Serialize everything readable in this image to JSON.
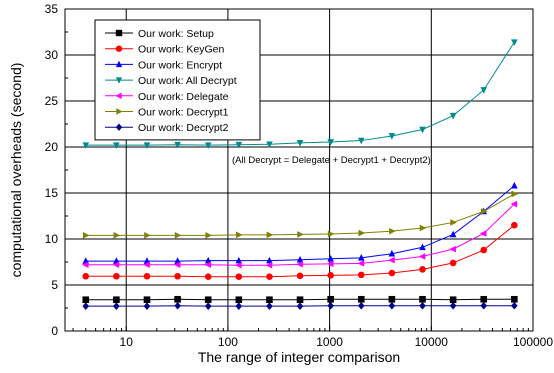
{
  "chart_data": {
    "type": "line",
    "xscale": "log",
    "xlim": [
      2.5,
      100000
    ],
    "ylim": [
      0,
      35
    ],
    "x": [
      4,
      8,
      16,
      32,
      64,
      128,
      256,
      512,
      1024,
      2048,
      4096,
      8192,
      16384,
      32768,
      65536
    ],
    "xticks": [
      10,
      100,
      1000,
      10000,
      100000
    ],
    "xtick_labels": [
      "10",
      "100",
      "1000",
      "10000",
      "100000"
    ],
    "yticks": [
      0,
      5,
      10,
      15,
      20,
      25,
      30,
      35
    ],
    "ytick_labels": [
      "0",
      "5",
      "10",
      "15",
      "20",
      "25",
      "30",
      "35"
    ],
    "xlabel": "The range of integer comparison",
    "ylabel": "computational overheads (second)",
    "grid": true,
    "legend_position": "top-left",
    "annotation": "(All Decrypt = Delegate + Decrypt1 + Decrypt2)",
    "series": [
      {
        "name": "Our work: Setup",
        "color": "#000000",
        "marker": "square",
        "values": [
          3.4,
          3.4,
          3.4,
          3.45,
          3.4,
          3.4,
          3.4,
          3.4,
          3.45,
          3.45,
          3.45,
          3.45,
          3.4,
          3.45,
          3.45
        ]
      },
      {
        "name": "Our work: KeyGen",
        "color": "#ff0000",
        "marker": "circle",
        "values": [
          5.95,
          5.95,
          5.95,
          5.95,
          5.9,
          5.9,
          5.9,
          6.0,
          6.05,
          6.1,
          6.3,
          6.7,
          7.4,
          8.8,
          11.5
        ]
      },
      {
        "name": "Our work: Encrypt",
        "color": "#0000ff",
        "marker": "triangle-up",
        "values": [
          7.6,
          7.6,
          7.6,
          7.6,
          7.65,
          7.65,
          7.65,
          7.75,
          7.85,
          7.95,
          8.4,
          9.1,
          10.5,
          13.0,
          15.8
        ]
      },
      {
        "name": "Our work: All Decrypt",
        "color": "#008b8b",
        "marker": "triangle-down",
        "values": [
          20.2,
          20.2,
          20.2,
          20.25,
          20.2,
          20.25,
          20.3,
          20.45,
          20.55,
          20.7,
          21.2,
          21.9,
          23.4,
          26.2,
          31.4
        ]
      },
      {
        "name": "Our work: Delegate",
        "color": "#ff00ff",
        "marker": "triangle-left",
        "values": [
          7.2,
          7.2,
          7.2,
          7.2,
          7.2,
          7.15,
          7.15,
          7.25,
          7.3,
          7.35,
          7.7,
          8.1,
          8.9,
          10.6,
          13.8
        ]
      },
      {
        "name": "Our work: Decrypt1",
        "color": "#808000",
        "marker": "triangle-right",
        "values": [
          10.4,
          10.4,
          10.4,
          10.4,
          10.4,
          10.45,
          10.45,
          10.5,
          10.55,
          10.65,
          10.85,
          11.2,
          11.8,
          13.0,
          14.9
        ]
      },
      {
        "name": "Our work: Decrypt2",
        "color": "#00008b",
        "marker": "diamond",
        "values": [
          2.7,
          2.7,
          2.7,
          2.75,
          2.7,
          2.7,
          2.7,
          2.7,
          2.75,
          2.75,
          2.75,
          2.75,
          2.75,
          2.75,
          2.75
        ]
      }
    ]
  }
}
